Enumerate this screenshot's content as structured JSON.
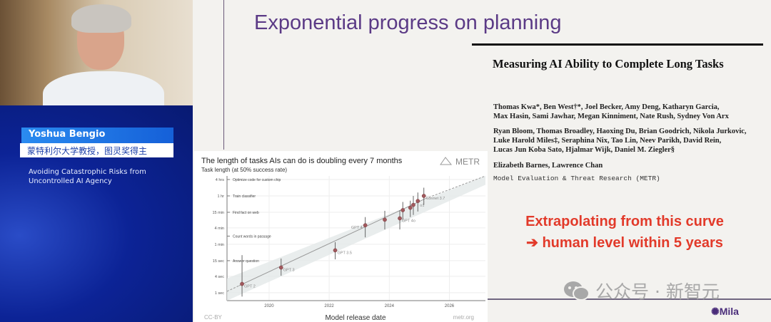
{
  "speaker": {
    "name": "Yoshua Bengio",
    "affiliation": "蒙特利尔大学教授，图灵奖得主",
    "talk_title": "Avoiding Catastrophic Risks from Uncontrolled AI Agency"
  },
  "slide": {
    "title": "Exponential progress on planning",
    "paper_title": "Measuring AI Ability to Complete Long Tasks",
    "authors": [
      "Thomas Kwa*, Ben West†*, Joel Becker, Amy Deng, Katharyn Garcia,",
      "Max Hasin, Sami Jawhar, Megan Kinniment, Nate Rush, Sydney Von Arx",
      "Ryan Bloom, Thomas Broadley, Haoxing Du, Brian Goodrich, Nikola Jurkovic,",
      "Luke Harold Miles‡, Seraphina Nix, Tao Lin, Neev Parikh, David Rein,",
      "Lucas Jun Koba Sato, Hjalmar Wijk, Daniel M. Ziegler§",
      "Elizabeth Barnes, Lawrence Chan"
    ],
    "organization": "Model Evaluation & Threat Research (METR)",
    "callout_line1": "Extrapolating from this curve",
    "callout_line2": "➔ human level within 5 years",
    "logo": "Mila",
    "watermark": "公众号 · 新智元",
    "colors": {
      "title": "#5b3a86",
      "callout": "#e23a2a",
      "point": "#a0585c"
    }
  },
  "chart_data": {
    "type": "scatter",
    "title": "The length of tasks AIs can do is doubling every 7 months",
    "subtitle": "Task length (at 50% success rate)",
    "brand": "METR",
    "xlabel": "Model release date",
    "footer_left": "CC-BY",
    "footer_right": "metr.org",
    "x_ticks": [
      "2020",
      "2022",
      "2024",
      "2026"
    ],
    "xlim": [
      2018.6,
      2027.2
    ],
    "y_scale": "log",
    "y_unit": "minutes",
    "y_ticks": [
      {
        "label": "4 hrs",
        "value": 240
      },
      {
        "label": "1 hr",
        "value": 60
      },
      {
        "label": "15 min",
        "value": 15
      },
      {
        "label": "4 min",
        "value": 4
      },
      {
        "label": "1 min",
        "value": 1
      },
      {
        "label": "15 sec",
        "value": 0.25
      },
      {
        "label": "4 sec",
        "value": 0.0667
      },
      {
        "label": "1 sec",
        "value": 0.0167
      }
    ],
    "tasks": [
      {
        "label": "Optimize code for custom chip",
        "value": 240
      },
      {
        "label": "Train classifier",
        "value": 60
      },
      {
        "label": "Find fact on web",
        "value": 15
      },
      {
        "label": "Count words in passage",
        "value": 2
      },
      {
        "label": "Answer question",
        "value": 0.25
      }
    ],
    "points": [
      {
        "label": "GPT 2",
        "x": 2019.1,
        "y": 0.035,
        "lo": 0.012,
        "hi": 0.4
      },
      {
        "label": "GPT 3",
        "x": 2020.4,
        "y": 0.14,
        "lo": 0.07,
        "hi": 0.3
      },
      {
        "label": "GPT 3.5",
        "x": 2022.2,
        "y": 0.6,
        "lo": 0.28,
        "hi": 1.2
      },
      {
        "label": "GPT 4",
        "x": 2023.2,
        "y": 5,
        "lo": 1.8,
        "hi": 10
      },
      {
        "label": "",
        "x": 2023.85,
        "y": 8,
        "lo": 3.5,
        "hi": 17
      },
      {
        "label": "GPT 4o",
        "x": 2024.35,
        "y": 9,
        "lo": 3.5,
        "hi": 18
      },
      {
        "label": "",
        "x": 2024.45,
        "y": 18,
        "lo": 8,
        "hi": 36
      },
      {
        "label": "",
        "x": 2024.7,
        "y": 22,
        "lo": 10,
        "hi": 40
      },
      {
        "label": "",
        "x": 2024.8,
        "y": 28,
        "lo": 12,
        "hi": 60
      },
      {
        "label": "o1",
        "x": 2024.95,
        "y": 39,
        "lo": 16,
        "hi": 80
      },
      {
        "label": "Sonnet 3.7",
        "x": 2025.15,
        "y": 60,
        "lo": 28,
        "hi": 120
      }
    ],
    "trend": {
      "doubling_months": 7,
      "fit_from": 2019.0,
      "fit_to": 2025.2
    },
    "grid": true
  }
}
